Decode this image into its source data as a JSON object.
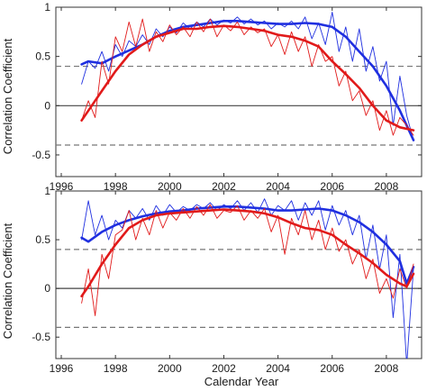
{
  "figure": {
    "xlabel": "Calendar Year"
  },
  "colors": {
    "blue": "#1f2fe0",
    "red": "#e11a1a",
    "frame": "#333333",
    "dashed": "#777777"
  },
  "chart_data": [
    {
      "type": "line",
      "title": "",
      "xlabel": "",
      "ylabel": "Correlation Coefficient",
      "xlim": [
        1995.8,
        2009.3
      ],
      "ylim": [
        -0.72,
        1.0
      ],
      "xticks": [
        "1996",
        "1998",
        "2000",
        "2002",
        "2004",
        "2006",
        "2008"
      ],
      "yticks": [
        "-0.5",
        "0",
        "0.5",
        "1"
      ],
      "grid": false,
      "legend": "none",
      "reference_lines": [
        {
          "y": 0.0,
          "style": "solid"
        },
        {
          "y": 0.4,
          "style": "dashed"
        },
        {
          "y": -0.4,
          "style": "dashed"
        }
      ],
      "series": [
        {
          "color": "blue",
          "style": "thin",
          "x": [
            1996.75,
            1997.0,
            1997.25,
            1997.5,
            1997.75,
            1998.0,
            1998.25,
            1998.5,
            1998.75,
            1999.0,
            1999.25,
            1999.5,
            1999.75,
            2000.0,
            2000.25,
            2000.5,
            2000.75,
            2001.0,
            2001.25,
            2001.5,
            2001.75,
            2002.0,
            2002.25,
            2002.5,
            2002.75,
            2003.0,
            2003.25,
            2003.5,
            2003.75,
            2004.0,
            2004.25,
            2004.5,
            2004.75,
            2005.0,
            2005.25,
            2005.5,
            2005.75,
            2006.0,
            2006.25,
            2006.5,
            2006.75,
            2007.0,
            2007.25,
            2007.5,
            2007.75,
            2008.0,
            2008.25,
            2008.5,
            2008.75,
            2009.0
          ],
          "y": [
            0.22,
            0.45,
            0.38,
            0.55,
            0.35,
            0.62,
            0.5,
            0.66,
            0.6,
            0.72,
            0.62,
            0.78,
            0.7,
            0.8,
            0.74,
            0.84,
            0.78,
            0.85,
            0.8,
            0.88,
            0.82,
            0.87,
            0.84,
            0.9,
            0.83,
            0.88,
            0.82,
            0.86,
            0.78,
            0.84,
            0.8,
            0.86,
            0.78,
            0.9,
            0.68,
            0.84,
            0.62,
            0.95,
            0.55,
            0.8,
            0.45,
            0.78,
            0.35,
            0.6,
            0.25,
            0.45,
            -0.2,
            0.3,
            -0.1,
            -0.35
          ]
        },
        {
          "color": "blue",
          "style": "thick",
          "x": [
            1996.75,
            1997.0,
            1997.5,
            1998.0,
            1998.5,
            1999.0,
            1999.5,
            2000.0,
            2000.5,
            2001.0,
            2001.5,
            2002.0,
            2002.5,
            2003.0,
            2003.5,
            2004.0,
            2004.5,
            2005.0,
            2005.5,
            2006.0,
            2006.5,
            2007.0,
            2007.5,
            2008.0,
            2008.5,
            2009.0
          ],
          "y": [
            0.42,
            0.45,
            0.43,
            0.5,
            0.56,
            0.62,
            0.7,
            0.76,
            0.8,
            0.82,
            0.84,
            0.86,
            0.86,
            0.85,
            0.84,
            0.83,
            0.83,
            0.84,
            0.83,
            0.8,
            0.7,
            0.55,
            0.4,
            0.2,
            -0.05,
            -0.35
          ]
        },
        {
          "color": "red",
          "style": "thin",
          "x": [
            1996.75,
            1997.0,
            1997.25,
            1997.5,
            1997.75,
            1998.0,
            1998.25,
            1998.5,
            1998.75,
            1999.0,
            1999.25,
            1999.5,
            1999.75,
            2000.0,
            2000.25,
            2000.5,
            2000.75,
            2001.0,
            2001.25,
            2001.5,
            2001.75,
            2002.0,
            2002.25,
            2002.5,
            2002.75,
            2003.0,
            2003.25,
            2003.5,
            2003.75,
            2004.0,
            2004.25,
            2004.5,
            2004.75,
            2005.0,
            2005.25,
            2005.5,
            2005.75,
            2006.0,
            2006.25,
            2006.5,
            2006.75,
            2007.0,
            2007.25,
            2007.5,
            2007.75,
            2008.0,
            2008.25,
            2008.5,
            2008.75,
            2009.0
          ],
          "y": [
            -0.15,
            0.05,
            -0.12,
            0.45,
            0.22,
            0.7,
            0.55,
            0.85,
            0.6,
            0.88,
            0.55,
            0.75,
            0.65,
            0.82,
            0.72,
            0.8,
            0.7,
            0.85,
            0.75,
            0.88,
            0.7,
            0.82,
            0.76,
            0.85,
            0.72,
            0.8,
            0.74,
            0.78,
            0.6,
            0.72,
            0.52,
            0.75,
            0.55,
            0.7,
            0.4,
            0.62,
            0.45,
            0.5,
            0.2,
            0.35,
            0.05,
            0.15,
            -0.1,
            0.05,
            -0.25,
            -0.05,
            -0.3,
            -0.12,
            -0.2,
            -0.3
          ]
        },
        {
          "color": "red",
          "style": "thick",
          "x": [
            1996.75,
            1997.0,
            1997.5,
            1998.0,
            1998.5,
            1999.0,
            1999.5,
            2000.0,
            2000.5,
            2001.0,
            2001.5,
            2002.0,
            2002.5,
            2003.0,
            2003.5,
            2004.0,
            2004.5,
            2005.0,
            2005.5,
            2006.0,
            2006.5,
            2007.0,
            2007.5,
            2008.0,
            2008.5,
            2009.0
          ],
          "y": [
            -0.15,
            -0.05,
            0.15,
            0.35,
            0.52,
            0.62,
            0.7,
            0.74,
            0.78,
            0.78,
            0.8,
            0.81,
            0.8,
            0.78,
            0.76,
            0.72,
            0.7,
            0.66,
            0.6,
            0.45,
            0.32,
            0.18,
            0.0,
            -0.15,
            -0.22,
            -0.25
          ]
        }
      ]
    },
    {
      "type": "line",
      "title": "",
      "xlabel": "Calendar Year",
      "ylabel": "Correlation Coefficient",
      "xlim": [
        1995.8,
        2009.3
      ],
      "ylim": [
        -0.72,
        1.0
      ],
      "xticks": [
        "1996",
        "1998",
        "2000",
        "2002",
        "2004",
        "2006",
        "2008"
      ],
      "yticks": [
        "-0.5",
        "0",
        "0.5",
        "1"
      ],
      "grid": false,
      "legend": "none",
      "reference_lines": [
        {
          "y": 0.0,
          "style": "solid"
        },
        {
          "y": 0.4,
          "style": "dashed"
        },
        {
          "y": -0.4,
          "style": "dashed"
        }
      ],
      "series": [
        {
          "color": "blue",
          "style": "thin",
          "x": [
            1996.75,
            1997.0,
            1997.25,
            1997.5,
            1997.75,
            1998.0,
            1998.25,
            1998.5,
            1998.75,
            1999.0,
            1999.25,
            1999.5,
            1999.75,
            2000.0,
            2000.25,
            2000.5,
            2000.75,
            2001.0,
            2001.25,
            2001.5,
            2001.75,
            2002.0,
            2002.25,
            2002.5,
            2002.75,
            2003.0,
            2003.25,
            2003.5,
            2003.75,
            2004.0,
            2004.25,
            2004.5,
            2004.75,
            2005.0,
            2005.25,
            2005.5,
            2005.75,
            2006.0,
            2006.25,
            2006.5,
            2006.75,
            2007.0,
            2007.25,
            2007.5,
            2007.75,
            2008.0,
            2008.25,
            2008.5,
            2008.75,
            2009.0
          ],
          "y": [
            0.5,
            0.9,
            0.55,
            0.75,
            0.5,
            0.7,
            0.62,
            0.8,
            0.72,
            0.82,
            0.7,
            0.85,
            0.75,
            0.86,
            0.78,
            0.84,
            0.8,
            0.86,
            0.82,
            0.88,
            0.8,
            0.86,
            0.82,
            0.9,
            0.8,
            0.88,
            0.78,
            0.92,
            0.75,
            0.85,
            0.8,
            0.9,
            0.7,
            0.88,
            0.75,
            0.9,
            0.6,
            0.85,
            0.65,
            0.8,
            0.55,
            0.75,
            0.3,
            0.65,
            0.2,
            0.55,
            -0.3,
            0.35,
            -0.78,
            0.2
          ]
        },
        {
          "color": "blue",
          "style": "thick",
          "x": [
            1996.75,
            1997.0,
            1997.5,
            1998.0,
            1998.5,
            1999.0,
            1999.5,
            2000.0,
            2000.5,
            2001.0,
            2001.5,
            2002.0,
            2002.5,
            2003.0,
            2003.5,
            2004.0,
            2004.5,
            2005.0,
            2005.5,
            2006.0,
            2006.5,
            2007.0,
            2007.5,
            2008.0,
            2008.5,
            2008.75,
            2009.0
          ],
          "y": [
            0.52,
            0.48,
            0.58,
            0.65,
            0.7,
            0.74,
            0.77,
            0.79,
            0.8,
            0.82,
            0.83,
            0.84,
            0.84,
            0.83,
            0.82,
            0.8,
            0.8,
            0.81,
            0.82,
            0.8,
            0.75,
            0.68,
            0.58,
            0.45,
            0.28,
            0.05,
            0.22
          ]
        },
        {
          "color": "red",
          "style": "thin",
          "x": [
            1996.75,
            1997.0,
            1997.25,
            1997.5,
            1997.75,
            1998.0,
            1998.25,
            1998.5,
            1998.75,
            1999.0,
            1999.25,
            1999.5,
            1999.75,
            2000.0,
            2000.25,
            2000.5,
            2000.75,
            2001.0,
            2001.25,
            2001.5,
            2001.75,
            2002.0,
            2002.25,
            2002.5,
            2002.75,
            2003.0,
            2003.25,
            2003.5,
            2003.75,
            2004.0,
            2004.25,
            2004.5,
            2004.75,
            2005.0,
            2005.25,
            2005.5,
            2005.75,
            2006.0,
            2006.25,
            2006.5,
            2006.75,
            2007.0,
            2007.25,
            2007.5,
            2007.75,
            2008.0,
            2008.25,
            2008.5,
            2008.75,
            2009.0
          ],
          "y": [
            -0.15,
            0.2,
            -0.28,
            0.35,
            0.1,
            0.55,
            0.6,
            0.8,
            0.5,
            0.72,
            0.55,
            0.8,
            0.62,
            0.78,
            0.7,
            0.82,
            0.72,
            0.84,
            0.75,
            0.86,
            0.72,
            0.8,
            0.78,
            0.85,
            0.7,
            0.8,
            0.72,
            0.82,
            0.58,
            0.75,
            0.35,
            0.72,
            0.55,
            0.8,
            0.5,
            0.7,
            0.4,
            0.62,
            0.38,
            0.5,
            0.25,
            0.4,
            0.1,
            0.3,
            -0.05,
            0.1,
            -0.1,
            0.2,
            0.0,
            0.25
          ]
        },
        {
          "color": "red",
          "style": "thick",
          "x": [
            1996.75,
            1997.0,
            1997.5,
            1998.0,
            1998.5,
            1999.0,
            1999.5,
            2000.0,
            2000.5,
            2001.0,
            2001.5,
            2002.0,
            2002.5,
            2003.0,
            2003.5,
            2004.0,
            2004.5,
            2005.0,
            2005.5,
            2006.0,
            2006.5,
            2007.0,
            2007.5,
            2008.0,
            2008.5,
            2008.75,
            2009.0
          ],
          "y": [
            -0.08,
            0.02,
            0.25,
            0.45,
            0.62,
            0.7,
            0.75,
            0.77,
            0.78,
            0.79,
            0.8,
            0.81,
            0.8,
            0.79,
            0.77,
            0.73,
            0.67,
            0.62,
            0.6,
            0.55,
            0.45,
            0.36,
            0.26,
            0.14,
            0.05,
            0.02,
            0.15
          ]
        }
      ]
    }
  ]
}
